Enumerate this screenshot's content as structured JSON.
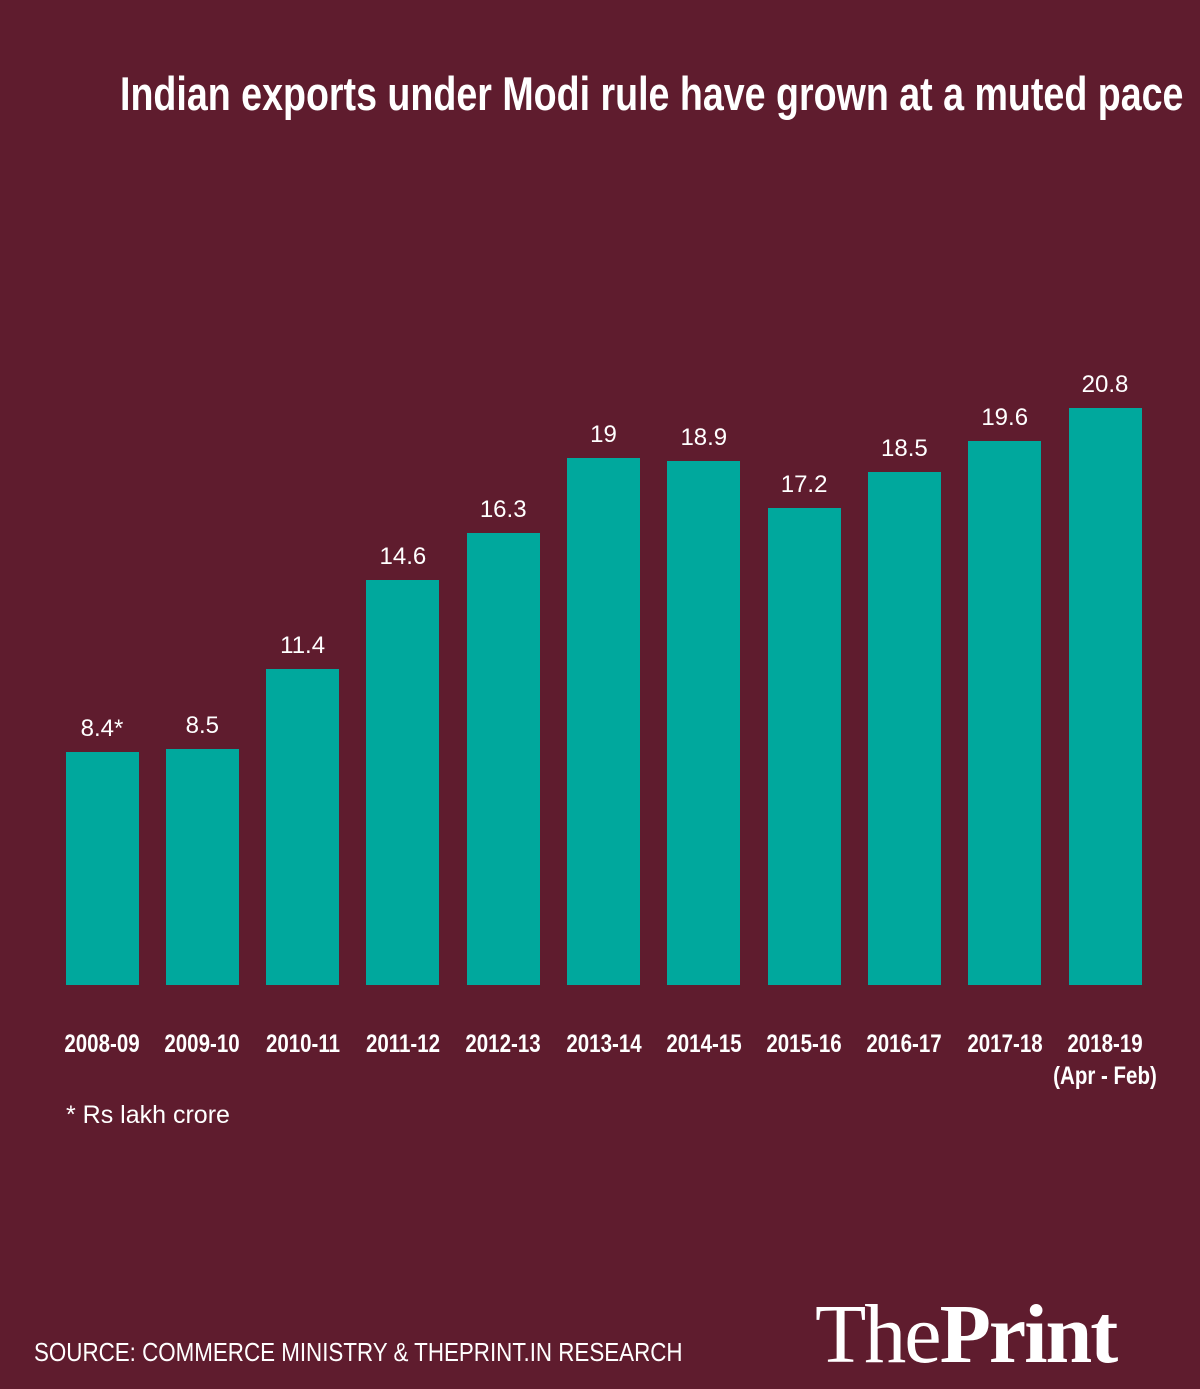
{
  "chart_data": {
    "type": "bar",
    "title": "Indian exports under Modi rule have grown at a muted pace",
    "categories": [
      "2008-09",
      "2009-10",
      "2010-11",
      "2011-12",
      "2012-13",
      "2013-14",
      "2014-15",
      "2015-16",
      "2016-17",
      "2017-18",
      "2018-19\n(Apr - Feb)"
    ],
    "values": [
      8.4,
      8.5,
      11.4,
      14.6,
      16.3,
      19,
      18.9,
      17.2,
      18.5,
      19.6,
      20.8
    ],
    "value_labels": [
      "8.4*",
      "8.5",
      "11.4",
      "14.6",
      "16.3",
      "19",
      "18.9",
      "17.2",
      "18.5",
      "19.6",
      "20.8"
    ],
    "color": "#00a89d",
    "note": "* Rs lakh crore",
    "source": "SOURCE: COMMERCE MINISTRY & THEPRINT.IN RESEARCH",
    "logo": {
      "the": "The",
      "print": "Print"
    }
  }
}
